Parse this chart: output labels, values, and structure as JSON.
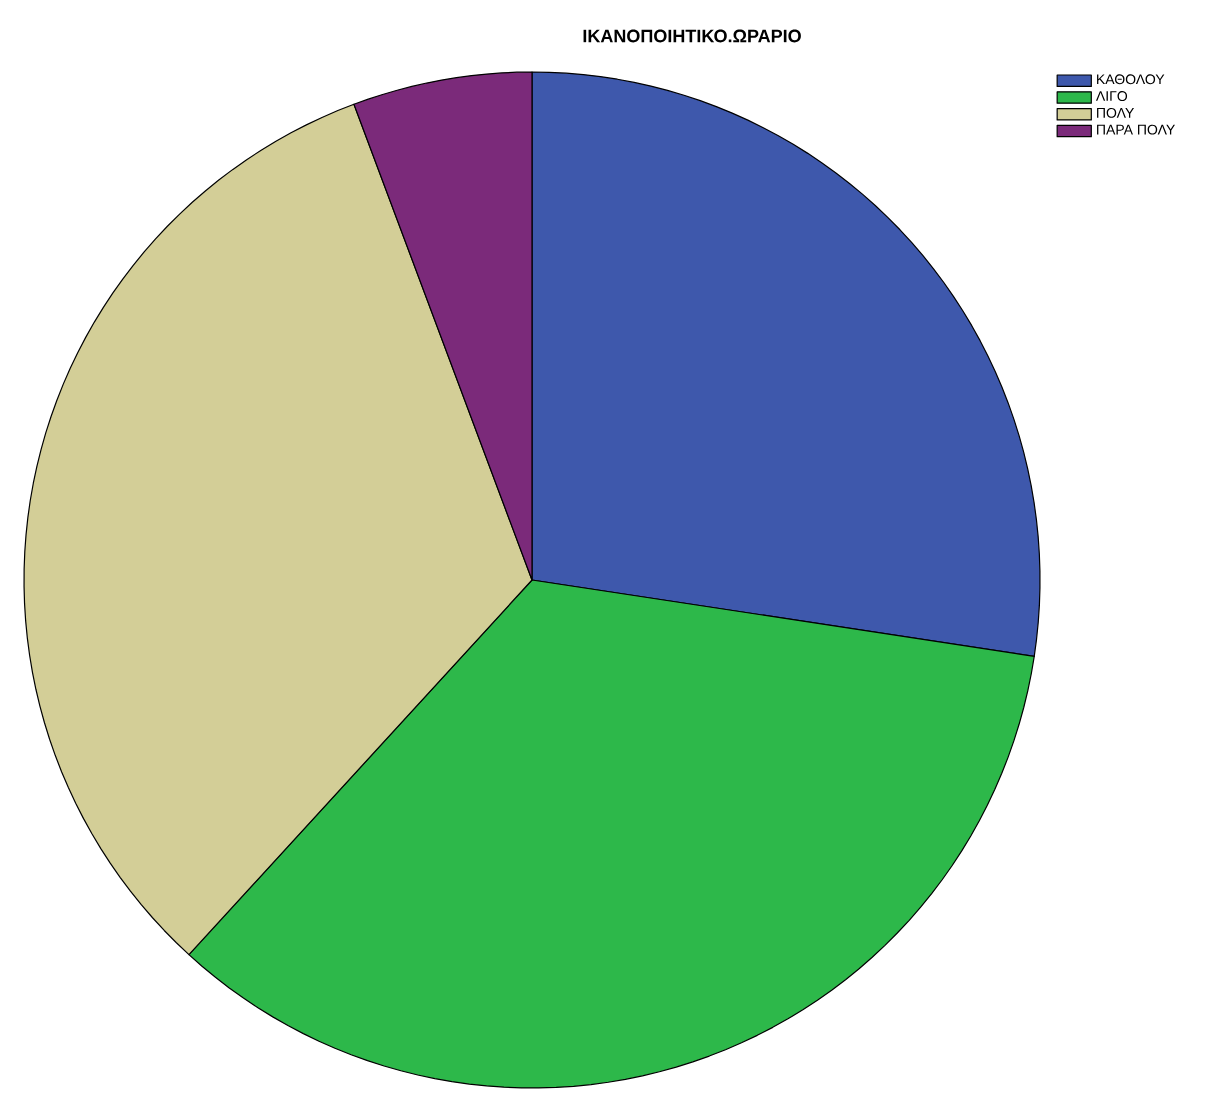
{
  "chart_data": {
    "type": "pie",
    "title": "ΙΚΑΝΟΠΟΙΗΤΙΚΟ.ΩΡΑΡΙΟ",
    "categories": [
      "ΚΑΘΟΛΟΥ",
      "ΛΙΓΟ",
      "ΠΟΛΥ",
      "ΠΑΡΑ ΠΟΛΥ"
    ],
    "values": [
      27.4,
      34.4,
      32.5,
      5.7
    ],
    "colors": [
      "#3e58ac",
      "#2db84a",
      "#d3ce97",
      "#7b2a7a"
    ],
    "legend": "top right"
  }
}
